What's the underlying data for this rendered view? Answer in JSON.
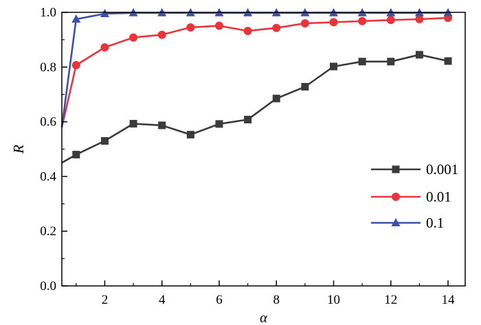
{
  "chart_data": {
    "type": "line",
    "title": "",
    "xlabel": "α",
    "ylabel": "R",
    "xlim": [
      0.5,
      14.6
    ],
    "ylim": [
      0,
      1.0
    ],
    "x_ticks": [
      2,
      4,
      6,
      8,
      10,
      12,
      14
    ],
    "x_tick_labels": [
      "2",
      "4",
      "6",
      "8",
      "10",
      "12",
      "14"
    ],
    "y_ticks": [
      0,
      0.2,
      0.4,
      0.6,
      0.8,
      1.0
    ],
    "y_tick_labels": [
      "0.0",
      "0.2",
      "0.4",
      "0.6",
      "0.8",
      "1.0"
    ],
    "grid": false,
    "legend_position": "right",
    "series": [
      {
        "name": "0.001",
        "color": "#3a3a3a",
        "marker": "square",
        "start": [
          0.5,
          0.45
        ],
        "x": [
          1,
          2,
          3,
          4,
          5,
          6,
          7,
          8,
          9,
          10,
          11,
          12,
          13,
          14
        ],
        "y": [
          0.48,
          0.53,
          0.593,
          0.587,
          0.553,
          0.592,
          0.608,
          0.685,
          0.728,
          0.802,
          0.82,
          0.82,
          0.845,
          0.822
        ]
      },
      {
        "name": "0.01",
        "color": "#e8343a",
        "marker": "circle",
        "start": [
          0.5,
          0.58
        ],
        "x": [
          1,
          2,
          3,
          4,
          5,
          6,
          7,
          8,
          9,
          10,
          11,
          12,
          13,
          14
        ],
        "y": [
          0.807,
          0.872,
          0.908,
          0.918,
          0.945,
          0.951,
          0.932,
          0.943,
          0.96,
          0.964,
          0.968,
          0.972,
          0.975,
          0.98
        ]
      },
      {
        "name": "0.1",
        "color": "#3e4fa8",
        "marker": "triangle",
        "start": [
          0.5,
          0.58
        ],
        "x": [
          1,
          2,
          3,
          4,
          5,
          6,
          7,
          8,
          9,
          10,
          11,
          12,
          13,
          14
        ],
        "y": [
          0.975,
          0.995,
          0.998,
          0.998,
          0.998,
          0.998,
          0.998,
          0.998,
          0.998,
          0.998,
          0.998,
          0.998,
          0.998,
          0.998
        ]
      }
    ]
  }
}
